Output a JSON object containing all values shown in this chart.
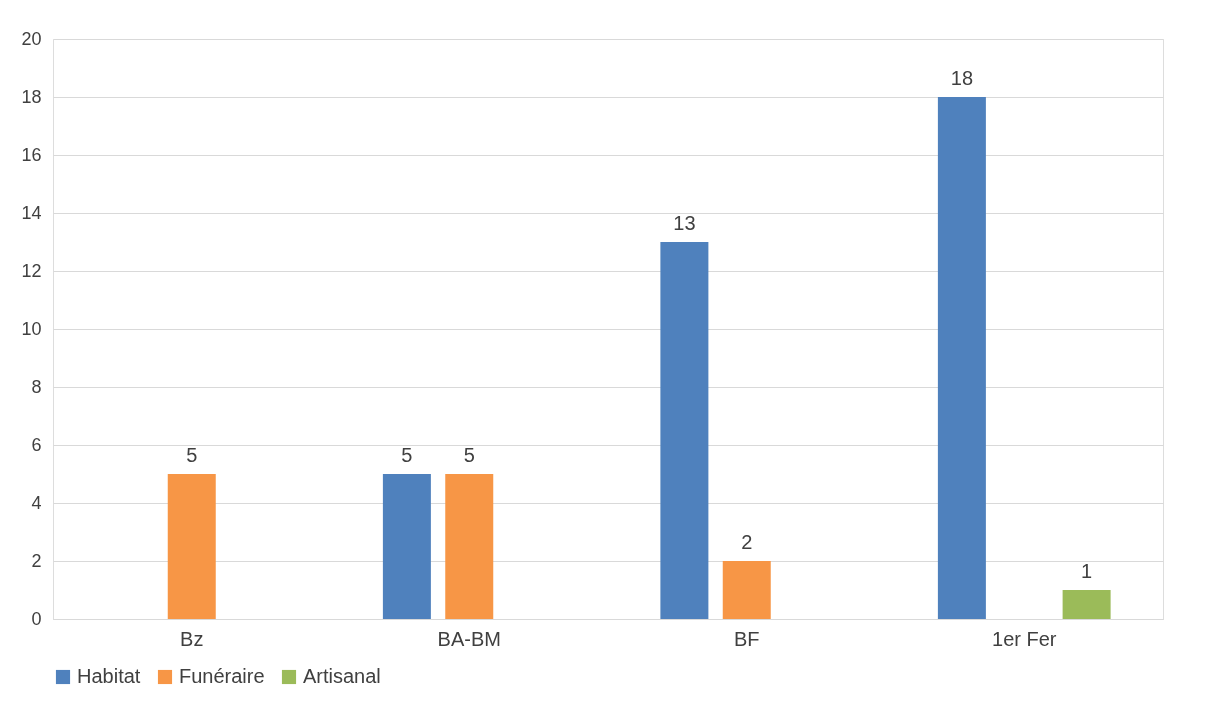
{
  "chart_data": {
    "type": "bar",
    "categories": [
      "Bz",
      "BA-BM",
      "BF",
      "1er Fer"
    ],
    "series": [
      {
        "name": "Habitat",
        "color": "#4f81bd",
        "values": [
          null,
          5,
          13,
          18
        ]
      },
      {
        "name": "Funéraire",
        "color": "#f79646",
        "values": [
          5,
          5,
          2,
          null
        ]
      },
      {
        "name": "Artisanal",
        "color": "#9bbb59",
        "values": [
          null,
          null,
          null,
          1
        ]
      }
    ],
    "ylim": [
      0,
      20
    ],
    "yticks": [
      0,
      2,
      4,
      6,
      8,
      10,
      12,
      14,
      16,
      18,
      20
    ],
    "grid": "y",
    "legend": "bottom",
    "data_labels": true
  }
}
